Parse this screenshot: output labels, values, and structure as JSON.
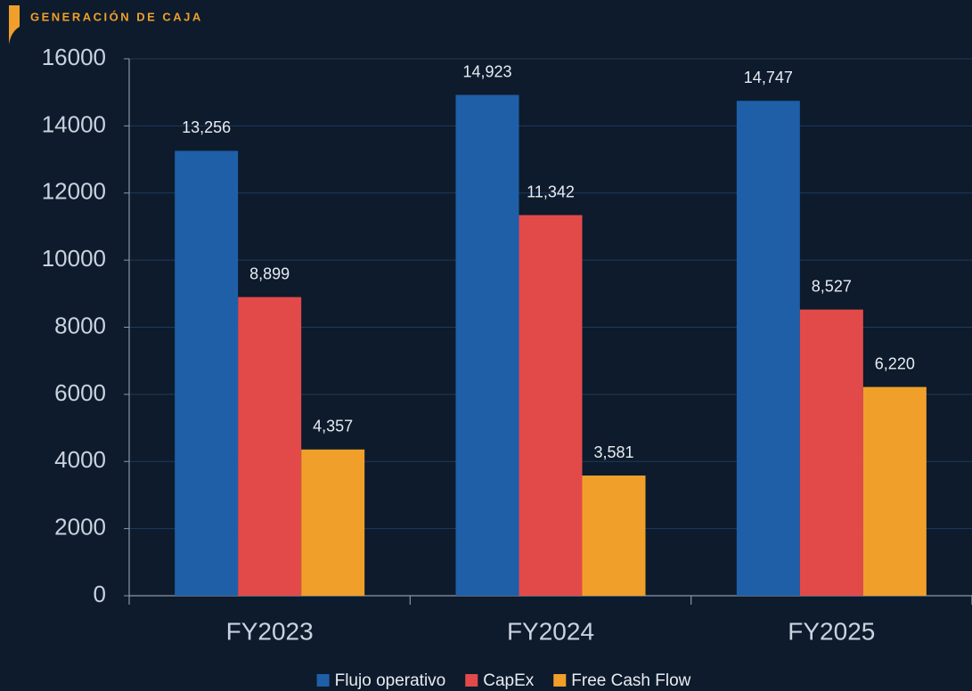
{
  "chart_data": {
    "type": "bar",
    "title": "GENERACIÓN DE CAJA",
    "categories": [
      "FY2023",
      "FY2024",
      "FY2025"
    ],
    "series": [
      {
        "name": "Flujo operativo",
        "color": "#1f5fa8",
        "values": [
          13256,
          14923,
          14747
        ],
        "value_labels": [
          "13,256",
          "14,923",
          "14,747"
        ]
      },
      {
        "name": "CapEx",
        "color": "#e24a4a",
        "values": [
          8899,
          11342,
          8527
        ],
        "value_labels": [
          "8,899",
          "11,342",
          "8,527"
        ]
      },
      {
        "name": "Free Cash Flow",
        "color": "#f0a02a",
        "values": [
          4357,
          3581,
          6220
        ],
        "value_labels": [
          "4,357",
          "3,581",
          "6,220"
        ]
      }
    ],
    "ylim": [
      0,
      16000
    ],
    "yticks": [
      0,
      2000,
      4000,
      6000,
      8000,
      10000,
      12000,
      14000,
      16000
    ],
    "grid": true,
    "legend": "bottom"
  }
}
